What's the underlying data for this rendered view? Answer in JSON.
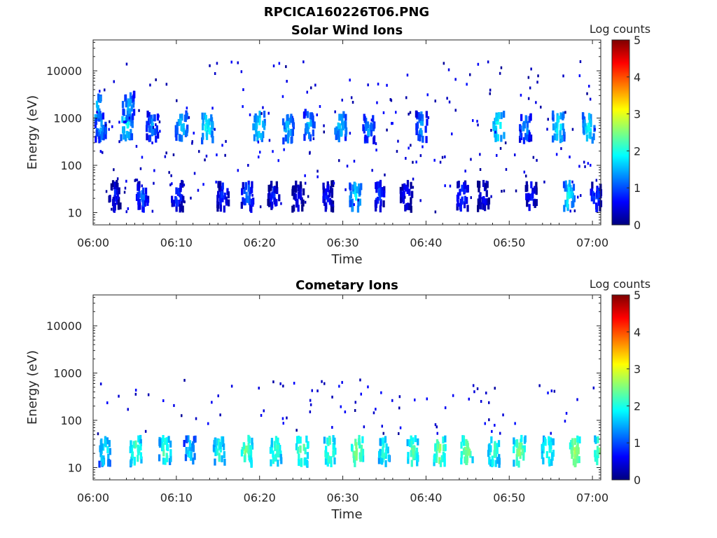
{
  "figure": {
    "title": "RPCICA160226T06.PNG"
  },
  "colormap": {
    "name": "jet",
    "stops": [
      "#00007f",
      "#0000ff",
      "#007fff",
      "#00ffff",
      "#7fff7f",
      "#ffff00",
      "#ff7f00",
      "#ff0000",
      "#7f0000"
    ]
  },
  "chart_data": [
    {
      "type": "heatmap",
      "title": "Solar Wind Ions",
      "xlabel": "Time",
      "ylabel": "Energy (eV)",
      "yscale": "log",
      "ylim": [
        5.5,
        45000
      ],
      "xlim_minutes": [
        0,
        61
      ],
      "x_ticks": [
        "06:00",
        "06:10",
        "06:20",
        "06:30",
        "06:40",
        "06:50",
        "07:00"
      ],
      "y_ticks": [
        "10",
        "100",
        "1000",
        "10000"
      ],
      "colorbar": {
        "label": "Log counts",
        "range": [
          0,
          5
        ],
        "ticks": [
          "0",
          "1",
          "2",
          "3",
          "4",
          "5"
        ]
      },
      "clusters": [
        {
          "t": 0.2,
          "e": 1800,
          "v": 1.8
        },
        {
          "t": 0.8,
          "e": 600,
          "v": 1.5
        },
        {
          "t": 3.9,
          "e": 700,
          "v": 2.0
        },
        {
          "t": 4.1,
          "e": 1800,
          "v": 1.6
        },
        {
          "t": 7.0,
          "e": 650,
          "v": 1.4
        },
        {
          "t": 10.5,
          "e": 700,
          "v": 1.8
        },
        {
          "t": 13.6,
          "e": 600,
          "v": 2.0
        },
        {
          "t": 19.8,
          "e": 650,
          "v": 1.9
        },
        {
          "t": 23.3,
          "e": 600,
          "v": 1.7
        },
        {
          "t": 25.8,
          "e": 700,
          "v": 1.6
        },
        {
          "t": 29.6,
          "e": 650,
          "v": 1.8
        },
        {
          "t": 33.0,
          "e": 620,
          "v": 1.5
        },
        {
          "t": 39.3,
          "e": 650,
          "v": 1.5
        },
        {
          "t": 48.6,
          "e": 650,
          "v": 2.1
        },
        {
          "t": 51.8,
          "e": 600,
          "v": 1.5
        },
        {
          "t": 55.8,
          "e": 650,
          "v": 2.0
        },
        {
          "t": 59.4,
          "e": 600,
          "v": 2.0
        },
        {
          "t": 2.5,
          "e": 22,
          "v": 0.8
        },
        {
          "t": 5.8,
          "e": 22,
          "v": 1.2
        },
        {
          "t": 10.0,
          "e": 22,
          "v": 1.0
        },
        {
          "t": 15.5,
          "e": 22,
          "v": 1.0
        },
        {
          "t": 18.4,
          "e": 22,
          "v": 1.3
        },
        {
          "t": 21.6,
          "e": 22,
          "v": 0.9
        },
        {
          "t": 24.5,
          "e": 22,
          "v": 0.8
        },
        {
          "t": 28.0,
          "e": 22,
          "v": 0.9
        },
        {
          "t": 31.4,
          "e": 22,
          "v": 1.9
        },
        {
          "t": 34.2,
          "e": 22,
          "v": 1.1
        },
        {
          "t": 37.5,
          "e": 22,
          "v": 0.9
        },
        {
          "t": 44.2,
          "e": 22,
          "v": 1.1
        },
        {
          "t": 46.8,
          "e": 22,
          "v": 0.8
        },
        {
          "t": 52.5,
          "e": 22,
          "v": 0.9
        },
        {
          "t": 57.0,
          "e": 22,
          "v": 2.0
        },
        {
          "t": 60.3,
          "e": 22,
          "v": 1.1
        }
      ]
    },
    {
      "type": "heatmap",
      "title": "Cometary Ions",
      "xlabel": "Time",
      "ylabel": "Energy (eV)",
      "yscale": "log",
      "ylim": [
        5.5,
        45000
      ],
      "xlim_minutes": [
        0,
        61
      ],
      "x_ticks": [
        "06:00",
        "06:10",
        "06:20",
        "06:30",
        "06:40",
        "06:50",
        "07:00"
      ],
      "y_ticks": [
        "10",
        "100",
        "1000",
        "10000"
      ],
      "colorbar": {
        "label": "Log counts",
        "range": [
          0,
          5
        ],
        "ticks": [
          "0",
          "1",
          "2",
          "3",
          "4",
          "5"
        ]
      },
      "clusters": [
        {
          "t": 1.3,
          "e": 22,
          "v": 2.1
        },
        {
          "t": 5.0,
          "e": 22,
          "v": 2.4
        },
        {
          "t": 8.5,
          "e": 22,
          "v": 2.3
        },
        {
          "t": 11.5,
          "e": 22,
          "v": 1.8
        },
        {
          "t": 15.0,
          "e": 22,
          "v": 2.2
        },
        {
          "t": 18.3,
          "e": 22,
          "v": 2.6
        },
        {
          "t": 21.8,
          "e": 22,
          "v": 2.4
        },
        {
          "t": 25.0,
          "e": 22,
          "v": 2.6
        },
        {
          "t": 28.3,
          "e": 22,
          "v": 2.5
        },
        {
          "t": 31.6,
          "e": 22,
          "v": 2.7
        },
        {
          "t": 34.8,
          "e": 22,
          "v": 2.2
        },
        {
          "t": 38.2,
          "e": 22,
          "v": 2.4
        },
        {
          "t": 41.5,
          "e": 22,
          "v": 2.7
        },
        {
          "t": 44.8,
          "e": 22,
          "v": 2.6
        },
        {
          "t": 48.0,
          "e": 22,
          "v": 2.3
        },
        {
          "t": 51.1,
          "e": 22,
          "v": 2.6
        },
        {
          "t": 54.5,
          "e": 22,
          "v": 2.3
        },
        {
          "t": 57.8,
          "e": 22,
          "v": 2.8
        },
        {
          "t": 60.8,
          "e": 22,
          "v": 2.6
        }
      ]
    }
  ]
}
